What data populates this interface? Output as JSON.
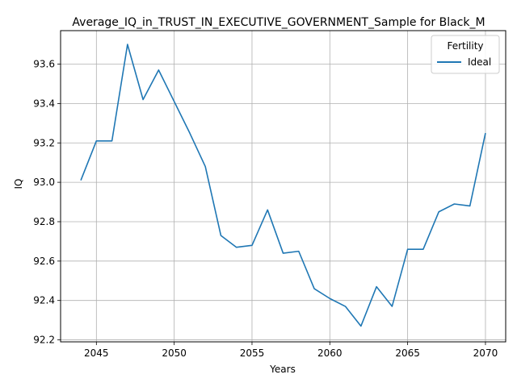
{
  "chart_data": {
    "type": "line",
    "title": "Average_IQ_in_TRUST_IN_EXECUTIVE_GOVERNMENT_Sample for Black_M",
    "xlabel": "Years",
    "ylabel": "IQ",
    "xlim": [
      2042.7,
      2071.3
    ],
    "ylim": [
      92.19,
      93.77
    ],
    "xticks": [
      2045,
      2050,
      2055,
      2060,
      2065,
      2070
    ],
    "yticks": [
      92.2,
      92.4,
      92.6,
      92.8,
      93.0,
      93.2,
      93.4,
      93.6
    ],
    "grid": true,
    "legend": {
      "title": "Fertility",
      "placement": "top-right"
    },
    "series": [
      {
        "name": "Ideal",
        "color": "#1f77b4",
        "x": [
          2044,
          2045,
          2046,
          2047,
          2048,
          2049,
          2050,
          2051,
          2052,
          2053,
          2054,
          2055,
          2056,
          2057,
          2058,
          2059,
          2060,
          2061,
          2062,
          2063,
          2064,
          2065,
          2066,
          2067,
          2068,
          2069,
          2070
        ],
        "y": [
          93.01,
          93.21,
          93.21,
          93.7,
          93.42,
          93.57,
          93.41,
          93.25,
          93.08,
          92.73,
          92.67,
          92.68,
          92.86,
          92.64,
          92.65,
          92.46,
          92.41,
          92.37,
          92.27,
          92.47,
          92.37,
          92.66,
          92.66,
          92.85,
          92.89,
          92.88,
          93.25
        ]
      }
    ]
  }
}
